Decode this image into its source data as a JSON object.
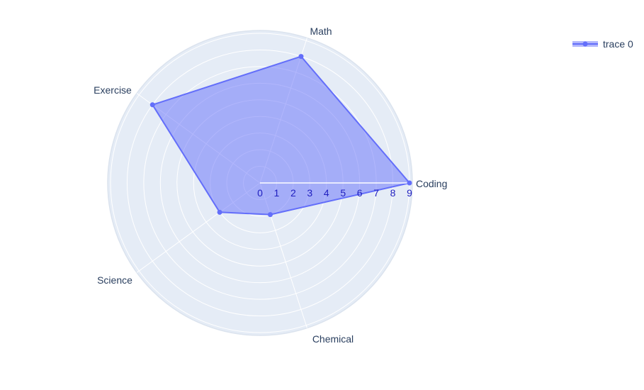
{
  "chart_data": {
    "type": "radar",
    "categories": [
      "Coding",
      "Math",
      "Exercise",
      "Science",
      "Chemical"
    ],
    "series": [
      {
        "name": "trace 0",
        "values": [
          9,
          8,
          8,
          3,
          2
        ]
      }
    ],
    "radial_ticks": [
      "0",
      "1",
      "2",
      "3",
      "4",
      "5",
      "6",
      "7",
      "8",
      "9"
    ],
    "rlim": [
      0,
      9
    ],
    "fill": "toself",
    "legend_position": "top-right",
    "colors": {
      "polar_bg": "#e5ecf6",
      "grid": "#ffffff",
      "trace": "#636efa",
      "trace_fill": "rgba(99,110,250,0.5)",
      "axis_text": "#2a3f5f",
      "tick_text": "#1f1fbf"
    }
  }
}
